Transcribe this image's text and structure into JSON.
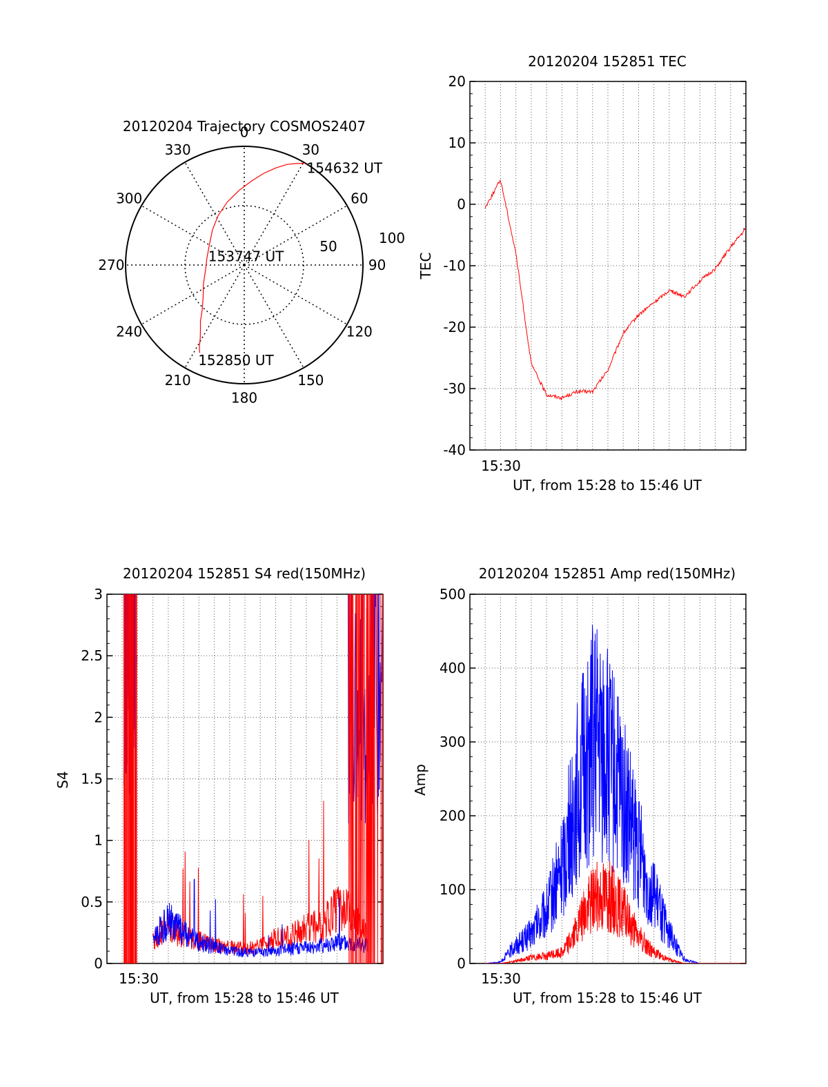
{
  "colors": {
    "red": "#ff0000",
    "blue": "#0000ff",
    "axis": "#000000",
    "grid": "#555555"
  },
  "chart_data": [
    {
      "id": "trajectory",
      "type": "polar",
      "title": "20120204 Trajectory COSMOS2407",
      "azimuth_labels": [
        "0",
        "30",
        "60",
        "90",
        "120",
        "150",
        "180",
        "210",
        "240",
        "270",
        "300",
        "330"
      ],
      "azimuth_values": [
        0,
        30,
        60,
        90,
        120,
        150,
        180,
        210,
        240,
        270,
        300,
        330
      ],
      "radial_labels": [
        "50",
        "100"
      ],
      "radial_values": [
        50,
        100
      ],
      "rmax": 100,
      "track": {
        "color": "#ff0000",
        "points": [
          [
            207,
            83
          ],
          [
            209,
            78
          ],
          [
            211,
            72
          ],
          [
            214,
            66
          ],
          [
            218,
            60
          ],
          [
            223,
            52
          ],
          [
            232,
            44
          ],
          [
            245,
            38
          ],
          [
            262,
            33
          ],
          [
            280,
            32
          ],
          [
            300,
            34
          ],
          [
            318,
            40
          ],
          [
            332,
            47
          ],
          [
            345,
            55
          ],
          [
            356,
            63
          ],
          [
            5,
            71
          ],
          [
            12,
            79
          ],
          [
            18,
            86
          ],
          [
            23,
            92
          ],
          [
            27,
            96
          ],
          [
            31,
            100
          ]
        ],
        "labels": [
          {
            "text": "152850 UT",
            "az": 207,
            "r": 83
          },
          {
            "text": "153747 UT",
            "az": 280,
            "r": 32
          },
          {
            "text": "154632 UT",
            "az": 31,
            "r": 100
          }
        ]
      }
    },
    {
      "id": "tec",
      "type": "line",
      "title": "20120204 152851 TEC",
      "xlabel": "UT, from 15:28 to 15:46 UT",
      "ylabel": "TEC",
      "xlim": [
        "15:28",
        "15:46"
      ],
      "ylim": [
        -40,
        20
      ],
      "yticks": [
        20,
        10,
        0,
        -10,
        -20,
        -30,
        -40
      ],
      "xticklabel": "15:30",
      "series": [
        {
          "color": "#ff0000",
          "x": [
            "15:29",
            "15:30",
            "15:31",
            "15:32",
            "15:33",
            "15:34",
            "15:35",
            "15:36",
            "15:37",
            "15:38",
            "15:39",
            "15:40",
            "15:41",
            "15:42",
            "15:43",
            "15:44",
            "15:45",
            "15:46"
          ],
          "y": [
            -0.5,
            4,
            -8,
            -26,
            -31,
            -31.5,
            -30.5,
            -30.5,
            -27,
            -21,
            -18,
            -16,
            -14,
            -15,
            -12.5,
            -10.5,
            -7,
            -4
          ]
        }
      ]
    },
    {
      "id": "s4",
      "type": "line",
      "title": "20120204 152851 S4 red(150MHz)",
      "xlabel": "UT, from 15:28 to 15:46 UT",
      "ylabel": "S4",
      "xlim": [
        "15:28",
        "15:46"
      ],
      "ylim": [
        0,
        3
      ],
      "yticks": [
        3,
        2.5,
        2,
        1.5,
        1,
        0.5,
        0
      ],
      "yticklabels": [
        "3",
        "2.5",
        "2",
        "1.5",
        "1",
        "0.5",
        "0"
      ],
      "xticklabel": "15:30",
      "series": [
        {
          "color": "#ff0000",
          "x": [
            "15:31",
            "15:32",
            "15:33",
            "15:34",
            "15:35",
            "15:36",
            "15:37",
            "15:38",
            "15:39",
            "15:40",
            "15:41",
            "15:42",
            "15:43",
            "15:44",
            "15:45"
          ],
          "y": [
            0.18,
            0.3,
            0.22,
            0.18,
            0.15,
            0.13,
            0.12,
            0.14,
            0.2,
            0.22,
            0.3,
            0.3,
            0.45,
            0.4,
            0.2
          ]
        },
        {
          "color": "#0000ff",
          "x": [
            "15:31",
            "15:32",
            "15:33",
            "15:34",
            "15:35",
            "15:36",
            "15:37",
            "15:38",
            "15:39",
            "15:40",
            "15:41",
            "15:42",
            "15:43",
            "15:44",
            "15:45"
          ],
          "y": [
            0.2,
            0.35,
            0.25,
            0.17,
            0.13,
            0.1,
            0.09,
            0.09,
            0.1,
            0.12,
            0.13,
            0.15,
            0.17,
            0.17,
            0.15
          ]
        }
      ]
    },
    {
      "id": "amp",
      "type": "line",
      "title": "20120204 152851 Amp red(150MHz)",
      "xlabel": "UT, from 15:28 to 15:46 UT",
      "ylabel": "Amp",
      "xlim": [
        "15:28",
        "15:46"
      ],
      "ylim": [
        0,
        500
      ],
      "yticks": [
        500,
        400,
        300,
        200,
        100,
        0
      ],
      "xticklabel": "15:30",
      "series": [
        {
          "color": "#0000ff",
          "x": [
            "15:29",
            "15:30",
            "15:31",
            "15:32",
            "15:33",
            "15:34",
            "15:35",
            "15:36",
            "15:37",
            "15:38",
            "15:39",
            "15:40",
            "15:41",
            "15:42",
            "15:43",
            "15:44",
            "15:45",
            "15:46"
          ],
          "y": [
            0,
            2,
            25,
            40,
            70,
            130,
            230,
            300,
            280,
            220,
            150,
            90,
            40,
            5,
            0,
            0,
            0,
            0
          ]
        },
        {
          "color": "#ff0000",
          "x": [
            "15:29",
            "15:30",
            "15:31",
            "15:32",
            "15:33",
            "15:34",
            "15:35",
            "15:36",
            "15:37",
            "15:38",
            "15:39",
            "15:40",
            "15:41",
            "15:42",
            "15:43",
            "15:44",
            "15:45",
            "15:46"
          ],
          "y": [
            0,
            0,
            3,
            8,
            10,
            15,
            45,
            90,
            95,
            70,
            35,
            15,
            5,
            0,
            0,
            0,
            0,
            0
          ]
        }
      ]
    }
  ]
}
